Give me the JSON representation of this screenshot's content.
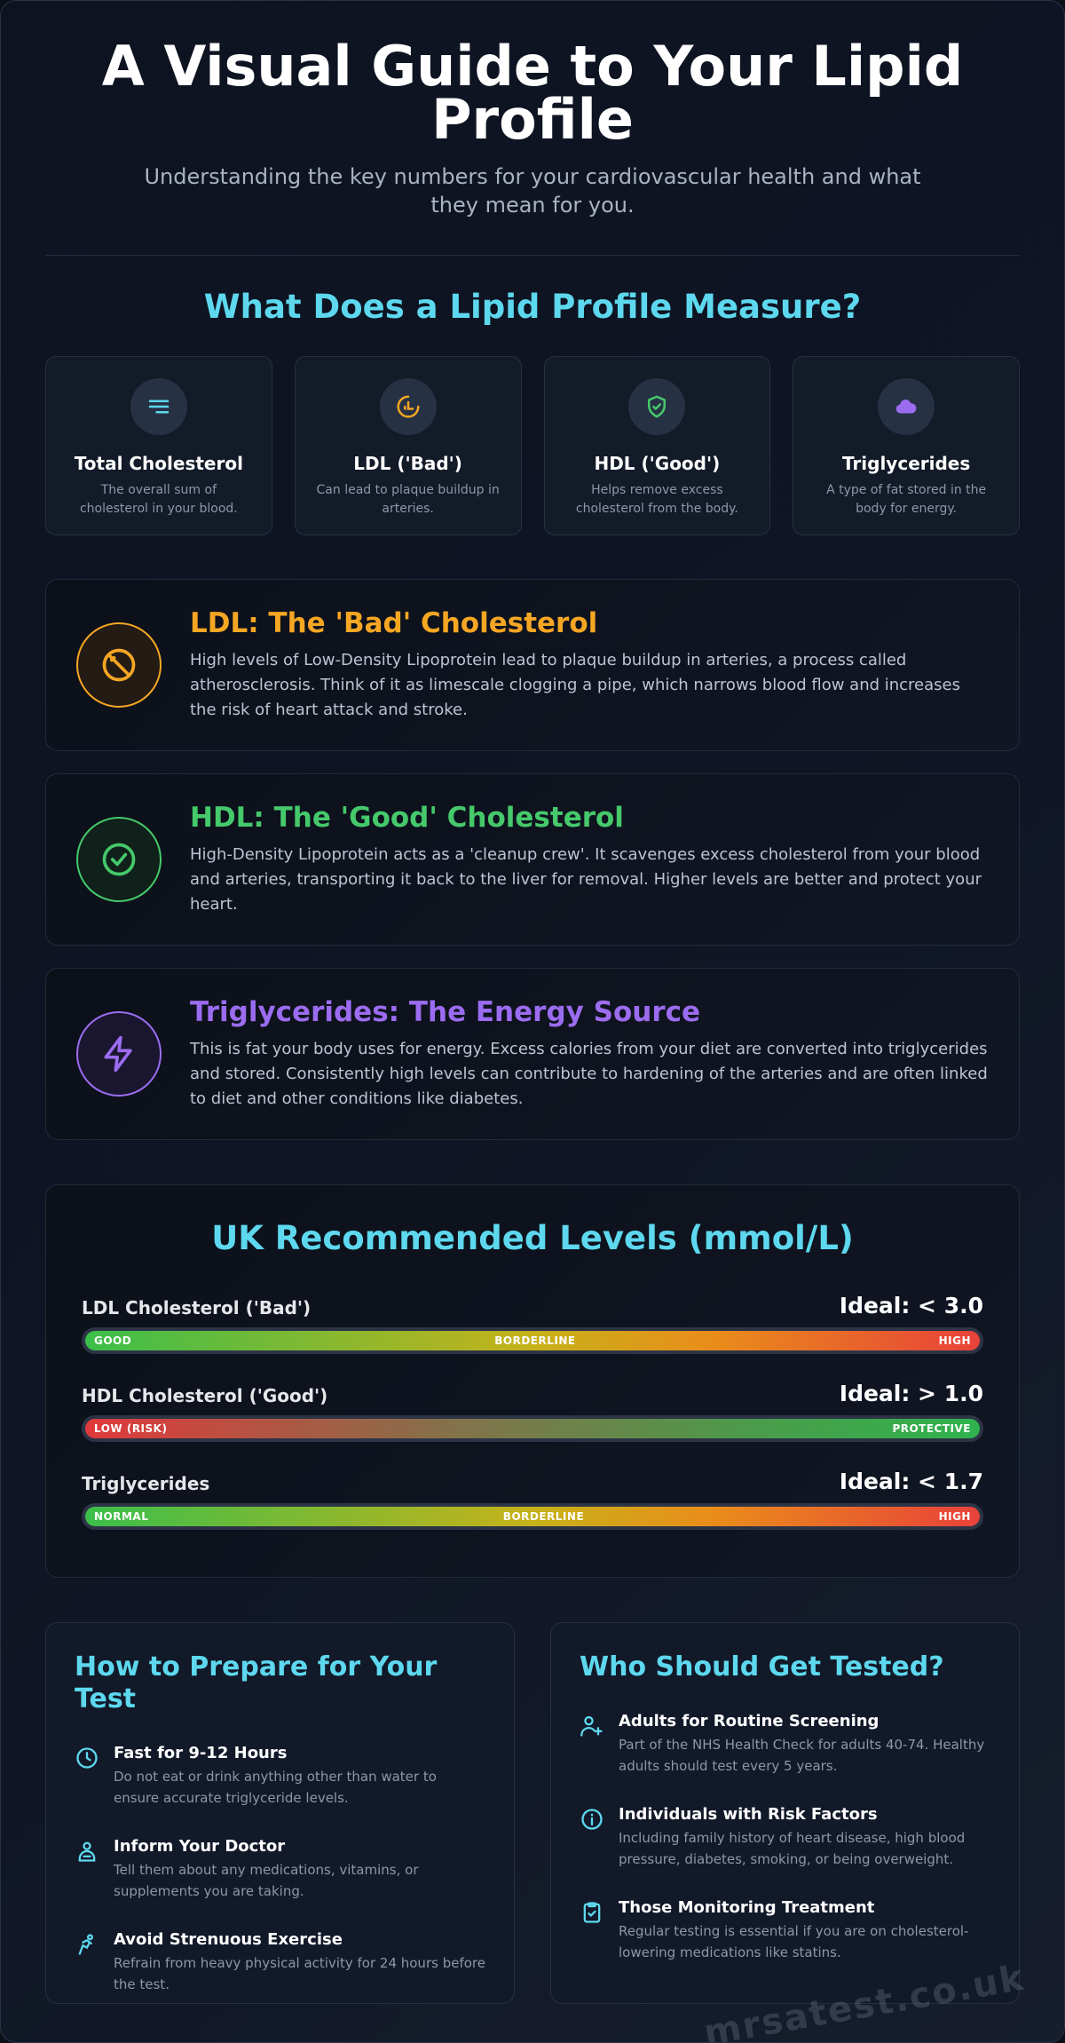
{
  "header": {
    "title": "A Visual Guide to Your Lipid Profile",
    "subtitle": "Understanding the key numbers for your cardiovascular health and what they mean for you."
  },
  "measure": {
    "heading": "What Does a Lipid Profile Measure?",
    "cards": [
      {
        "title": "Total Cholesterol",
        "desc": "The overall sum of cholesterol in your blood.",
        "icon": "list-lines-icon",
        "color": "#5dd8ee"
      },
      {
        "title": "LDL ('Bad')",
        "desc": "Can lead to plaque buildup in arteries.",
        "icon": "clogged-artery-icon",
        "color": "#f5a623"
      },
      {
        "title": "HDL ('Good')",
        "desc": "Helps remove excess cholesterol from the body.",
        "icon": "shield-check-icon",
        "color": "#45c96b"
      },
      {
        "title": "Triglycerides",
        "desc": "A type of fat stored in the body for energy.",
        "icon": "cloud-icon",
        "color": "#9b6cf0"
      }
    ]
  },
  "features": [
    {
      "title": "LDL: The 'Bad' Cholesterol",
      "text": "High levels of Low-Density Lipoprotein lead to plaque buildup in arteries, a process called atherosclerosis. Think of it as limescale clogging a pipe, which narrows blood flow and increases the risk of heart attack and stroke.",
      "icon": "blocked-icon",
      "color": "#f5a623"
    },
    {
      "title": "HDL: The 'Good' Cholesterol",
      "text": "High-Density Lipoprotein acts as a 'cleanup crew'. It scavenges excess cholesterol from your blood and arteries, transporting it back to the liver for removal. Higher levels are better and protect your heart.",
      "icon": "check-circle-icon",
      "color": "#45c96b"
    },
    {
      "title": "Triglycerides: The Energy Source",
      "text": "This is fat your body uses for energy. Excess calories from your diet are converted into triglycerides and stored. Consistently high levels can contribute to hardening of the arteries and are often linked to diet and other conditions like diabetes.",
      "icon": "lightning-icon",
      "color": "#9b6cf0"
    }
  ],
  "levels": {
    "heading": "UK Recommended Levels (mmol/L)",
    "rows": [
      {
        "name": "LDL Cholesterol ('Bad')",
        "ideal": "Ideal: < 3.0",
        "left": "GOOD",
        "mid": "BORDERLINE",
        "right": "HIGH"
      },
      {
        "name": "HDL Cholesterol ('Good')",
        "ideal": "Ideal: > 1.0",
        "left": "LOW (RISK)",
        "mid": "",
        "right": "PROTECTIVE"
      },
      {
        "name": "Triglycerides",
        "ideal": "Ideal: < 1.7",
        "left": "NORMAL",
        "mid": "BORDERLINE",
        "right": "HIGH"
      }
    ]
  },
  "prepare": {
    "heading": "How to Prepare for Your Test",
    "items": [
      {
        "title": "Fast for 9-12 Hours",
        "text": "Do not eat or drink anything other than water to ensure accurate triglyceride levels.",
        "icon": "clock-icon"
      },
      {
        "title": "Inform Your Doctor",
        "text": "Tell them about any medications, vitamins, or supplements you are taking.",
        "icon": "doctor-icon"
      },
      {
        "title": "Avoid Strenuous Exercise",
        "text": "Refrain from heavy physical activity for 24 hours before the test.",
        "icon": "exercise-icon"
      }
    ]
  },
  "tested": {
    "heading": "Who Should Get Tested?",
    "items": [
      {
        "title": "Adults for Routine Screening",
        "text": "Part of the NHS Health Check for adults 40-74. Healthy adults should test every 5 years.",
        "icon": "add-user-icon"
      },
      {
        "title": "Individuals with Risk Factors",
        "text": "Including family history of heart disease, high blood pressure, diabetes, smoking, or being overweight.",
        "icon": "info-icon"
      },
      {
        "title": "Those Monitoring Treatment",
        "text": "Regular testing is essential if you are on cholesterol-lowering medications like statins.",
        "icon": "clipboard-check-icon"
      }
    ]
  },
  "watermark": "mrsatest.co.uk",
  "colors": {
    "accent": "#5dd8ee",
    "ldl": "#f5a623",
    "hdl": "#45c96b",
    "trig": "#9b6cf0"
  }
}
